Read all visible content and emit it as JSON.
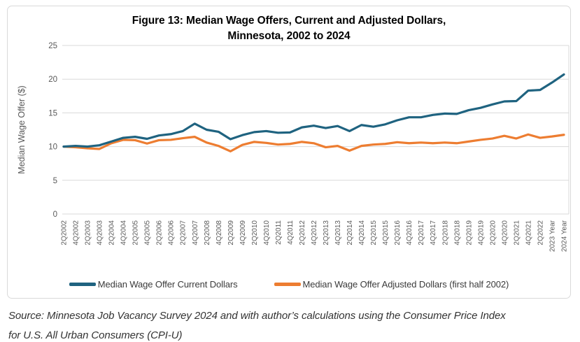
{
  "page": {
    "title_line1": "Figure 13: Median Wage Offers, Current and Adjusted Dollars,",
    "title_line2": "Minnesota, 2002 to 2024",
    "source_line1": "Source: Minnesota Job Vacancy Survey 2024 and with author’s calculations using the Consumer Price Index",
    "source_line2": "for U.S. All Urban Consumers (CPI-U)"
  },
  "colors": {
    "gridline": "#d9d9d9",
    "plot_border": "#d9d9d9",
    "axis_text": "#595959",
    "legend_text": "#3a3a3a",
    "series_current": "#1f6380",
    "series_adjusted": "#ed7d31"
  },
  "chart_data": {
    "type": "line",
    "title": "Figure 13: Median Wage Offers, Current and Adjusted Dollars, Minnesota, 2002 to 2024",
    "xlabel": "",
    "ylabel": "Median Wage Offer ($)",
    "ylim": [
      0,
      25
    ],
    "yticks": [
      0,
      5,
      10,
      15,
      20,
      25
    ],
    "grid": "horizontal",
    "legend_position": "bottom",
    "categories": [
      "2Q2002",
      "4Q2002",
      "2Q2003",
      "4Q2003",
      "2Q2004",
      "4Q2004",
      "2Q2005",
      "4Q2005",
      "2Q2006",
      "4Q2006",
      "2Q2007",
      "4Q2007",
      "2Q2008",
      "4Q2008",
      "2Q2009",
      "4Q2009",
      "2Q2010",
      "4Q2010",
      "2Q2011",
      "4Q2011",
      "2Q2012",
      "4Q2012",
      "2Q2013",
      "4Q2013",
      "2Q2014",
      "4Q2014",
      "2Q2015",
      "4Q2015",
      "2Q2016",
      "4Q2016",
      "2Q2017",
      "4Q2017",
      "2Q2018",
      "4Q2018",
      "2Q2019",
      "4Q2019",
      "2Q2020",
      "4Q2020",
      "2Q2021",
      "4Q2021",
      "2Q2022",
      "2023 Year",
      "2024 Year"
    ],
    "series": [
      {
        "name": "Median Wage Offer Current Dollars",
        "color": "#1f6380",
        "values": [
          10.0,
          10.1,
          10.0,
          10.2,
          10.75,
          11.3,
          11.45,
          11.15,
          11.65,
          11.85,
          12.3,
          13.4,
          12.5,
          12.2,
          11.1,
          11.7,
          12.15,
          12.3,
          12.05,
          12.1,
          12.85,
          13.1,
          12.75,
          13.05,
          12.3,
          13.2,
          12.95,
          13.3,
          13.9,
          14.35,
          14.35,
          14.7,
          14.9,
          14.85,
          15.4,
          15.75,
          16.25,
          16.7,
          16.75,
          18.3,
          18.4,
          19.5,
          20.7
        ]
      },
      {
        "name": "Median Wage Offer Adjusted Dollars (first half 2002)",
        "color": "#ed7d31",
        "values": [
          10.0,
          9.9,
          9.75,
          9.65,
          10.5,
          11.0,
          10.95,
          10.45,
          10.95,
          11.0,
          11.25,
          11.45,
          10.6,
          10.1,
          9.3,
          10.25,
          10.7,
          10.55,
          10.3,
          10.4,
          10.7,
          10.5,
          9.9,
          10.1,
          9.4,
          10.1,
          10.3,
          10.4,
          10.65,
          10.5,
          10.6,
          10.5,
          10.6,
          10.5,
          10.75,
          11.0,
          11.2,
          11.6,
          11.2,
          11.8,
          11.3,
          11.5,
          11.75
        ]
      }
    ]
  }
}
